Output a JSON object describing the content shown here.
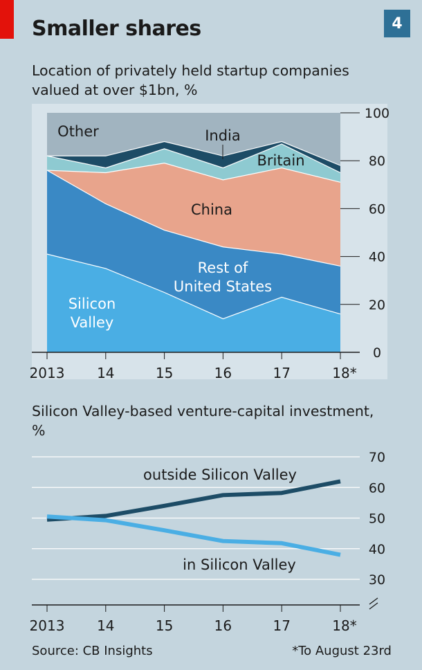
{
  "header": {
    "title": "Smaller shares",
    "chart_number": "4"
  },
  "footer": {
    "source": "Source: CB Insights",
    "note": "*To August 23rd"
  },
  "colors": {
    "background": "#c4d5de",
    "plot_background": "#d7e3ea",
    "accent_red": "#e3120b",
    "number_box": "#2e7096",
    "silicon_valley": "#4aaee4",
    "rest_of_us": "#3a89c5",
    "china": "#e8a48c",
    "britain": "#8ecad1",
    "india": "#1d4c66",
    "other": "#a1b4c0",
    "outside_line": "#1d4c66",
    "inside_line": "#4aaee4"
  },
  "chart_data": [
    {
      "type": "area",
      "stacked": true,
      "title": "Location of privately held startup companies valued at over $1bn, %",
      "x": [
        "2013",
        "14",
        "15",
        "16",
        "17",
        "18*"
      ],
      "ylim": [
        0,
        100
      ],
      "yticks": [
        0,
        20,
        40,
        60,
        80,
        100
      ],
      "y_axis_side": "right",
      "grid": true,
      "series": [
        {
          "name": "Silicon Valley",
          "label_lines": [
            "Silicon",
            "Valley"
          ],
          "values": [
            41,
            35,
            25,
            14,
            23,
            16
          ],
          "color": "#4aaee4"
        },
        {
          "name": "Rest of United States",
          "label_lines": [
            "Rest of",
            "United States"
          ],
          "values": [
            35,
            27,
            26,
            30,
            18,
            20
          ],
          "color": "#3a89c5"
        },
        {
          "name": "China",
          "label_lines": [
            "China"
          ],
          "values": [
            0,
            13,
            28,
            28,
            36,
            35
          ],
          "color": "#e8a48c"
        },
        {
          "name": "Britain",
          "label_lines": [
            "Britain"
          ],
          "values": [
            6,
            2,
            6,
            5,
            10,
            4
          ],
          "color": "#8ecad1"
        },
        {
          "name": "India",
          "label_lines": [
            "India"
          ],
          "values": [
            0,
            5,
            3,
            5,
            1,
            3
          ],
          "color": "#1d4c66"
        },
        {
          "name": "Other",
          "label_lines": [
            "Other"
          ],
          "values": [
            18,
            18,
            12,
            18,
            12,
            22
          ],
          "color": "#a1b4c0"
        }
      ]
    },
    {
      "type": "line",
      "title": "Silicon Valley-based venture-capital investment, %",
      "x": [
        "2013",
        "14",
        "15",
        "16",
        "17",
        "18*"
      ],
      "ylim": [
        30,
        70
      ],
      "yticks": [
        30,
        40,
        50,
        60,
        70
      ],
      "y_axis_side": "right",
      "y_axis_break": true,
      "grid": true,
      "series": [
        {
          "name": "outside Silicon Valley",
          "values": [
            49.5,
            50.7,
            54.0,
            57.5,
            58.2,
            62.0
          ],
          "color": "#1d4c66"
        },
        {
          "name": "in Silicon Valley",
          "values": [
            50.5,
            49.3,
            46.0,
            42.5,
            41.8,
            38.0
          ],
          "color": "#4aaee4"
        }
      ]
    }
  ]
}
